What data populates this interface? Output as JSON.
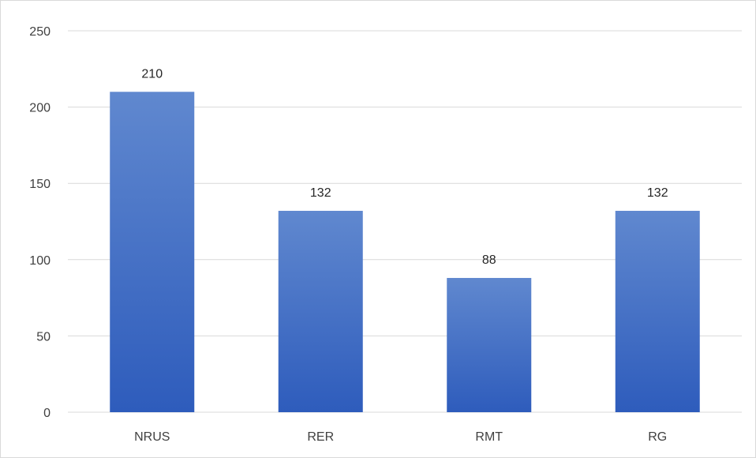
{
  "chart_data": {
    "type": "bar",
    "categories": [
      "NRUS",
      "RER",
      "RMT",
      "RG"
    ],
    "values": [
      210,
      132,
      88,
      132
    ],
    "data_labels": [
      "210",
      "132",
      "88",
      "132"
    ],
    "y_ticks": [
      "0",
      "50",
      "100",
      "150",
      "200",
      "250"
    ],
    "ylim": [
      0,
      250
    ],
    "grid": true,
    "legend": "none",
    "title": "",
    "xlabel": "",
    "ylabel": "",
    "colors": {
      "bar_top": "#6088cf",
      "bar_bottom": "#2e5cbc",
      "gridline": "#d9d9d9",
      "axis": "#d9d9d9",
      "text": "#404040"
    }
  }
}
